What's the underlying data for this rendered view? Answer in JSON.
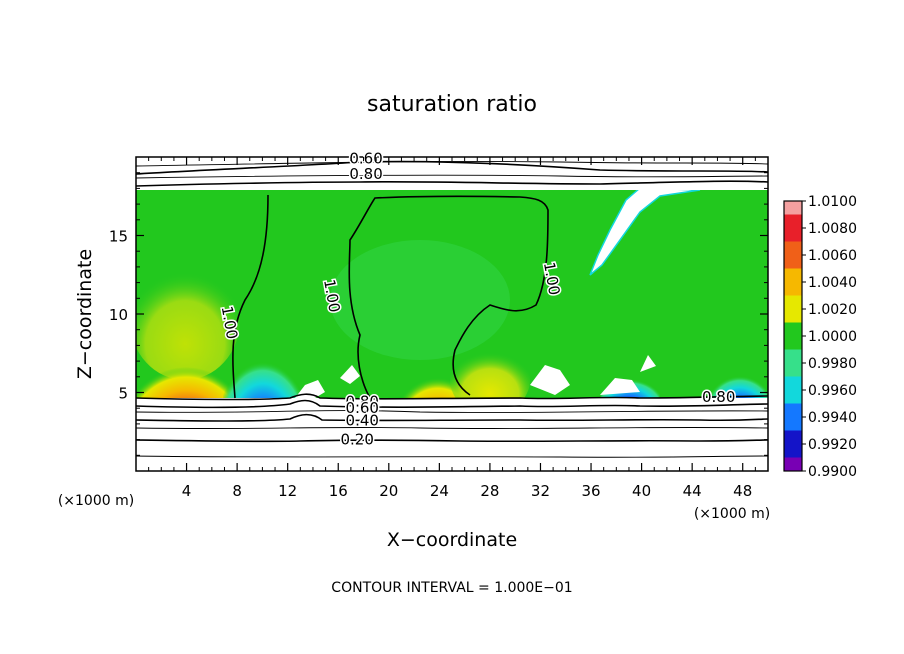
{
  "chart_data": {
    "type": "heatmap",
    "title": "saturation ratio",
    "xlabel": "X−coordinate",
    "ylabel": "Z−coordinate",
    "x_unit_label": "(×1000 m)",
    "y_unit_label": "(×1000 m)",
    "xlim": [
      0,
      50
    ],
    "ylim": [
      0,
      20
    ],
    "x_ticks": [
      4,
      8,
      12,
      16,
      20,
      24,
      28,
      32,
      36,
      40,
      44,
      48
    ],
    "y_ticks": [
      5,
      10,
      15
    ],
    "footer": "CONTOUR INTERVAL = 1.000E−01",
    "colorbar": {
      "levels": [
        "1.0100",
        "1.0080",
        "1.0060",
        "1.0040",
        "1.0020",
        "1.0000",
        "0.9980",
        "0.9960",
        "0.9940",
        "0.9920",
        "0.9900"
      ],
      "colors": [
        "#f4a0a0",
        "#e8202a",
        "#f06018",
        "#f6b800",
        "#e6e800",
        "#22c81e",
        "#36e08a",
        "#12d8dc",
        "#1478ff",
        "#1414c8",
        "#7800b4"
      ]
    },
    "contour_labels": [
      {
        "text": "0.60",
        "x": 18.2,
        "z": 19.6
      },
      {
        "text": "0.80",
        "x": 18.2,
        "z": 18.6
      },
      {
        "text": "1.00",
        "x": 7.0,
        "z": 9.4
      },
      {
        "text": "1.00",
        "x": 15.1,
        "z": 11.1
      },
      {
        "text": "1.00",
        "x": 32.5,
        "z": 12.2
      },
      {
        "text": "0.80",
        "x": 17.9,
        "z": 4.1
      },
      {
        "text": "0.60",
        "x": 17.9,
        "z": 3.7
      },
      {
        "text": "0.40",
        "x": 17.9,
        "z": 2.9
      },
      {
        "text": "0.20",
        "x": 17.5,
        "z": 1.7
      },
      {
        "text": "0.80",
        "x": 46.1,
        "z": 4.4
      }
    ]
  }
}
